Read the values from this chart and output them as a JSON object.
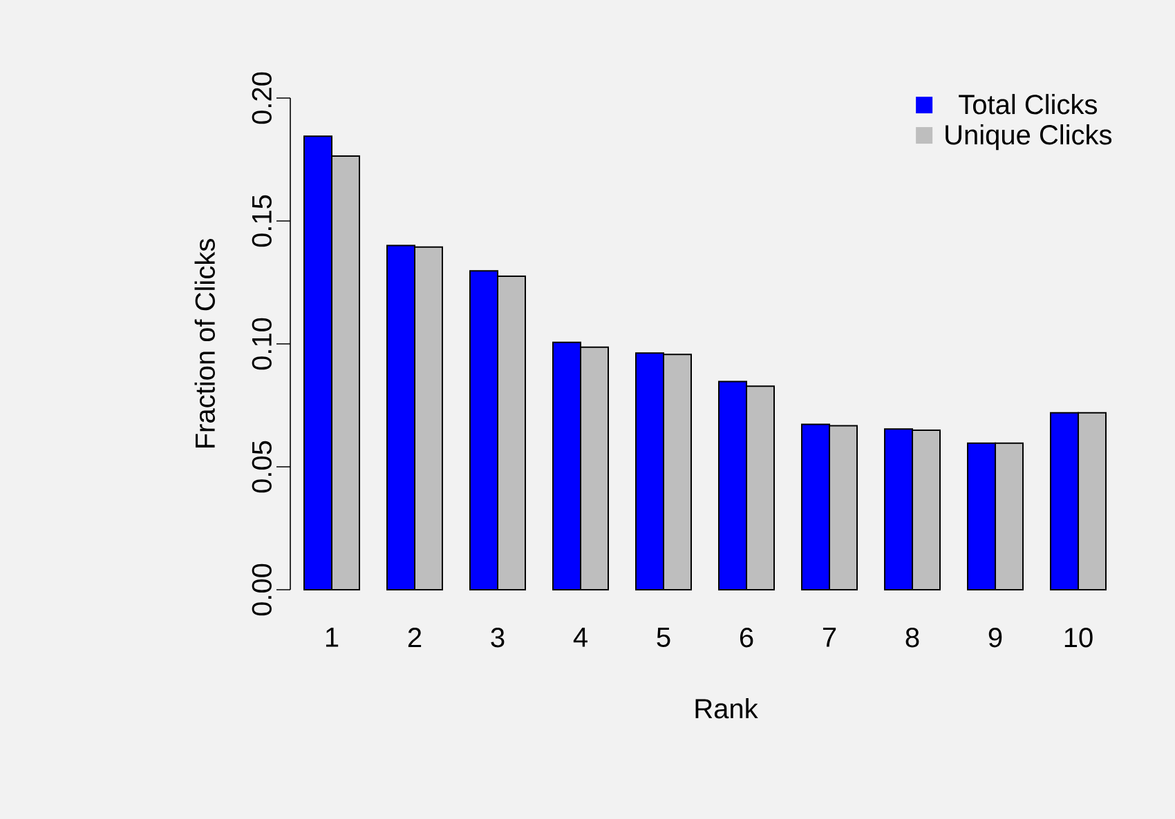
{
  "chart_data": {
    "type": "bar",
    "xlabel": "Rank",
    "ylabel": "Fraction of Clicks",
    "categories": [
      "1",
      "2",
      "3",
      "4",
      "5",
      "6",
      "7",
      "8",
      "9",
      "10"
    ],
    "series": [
      {
        "name": "Total Clicks",
        "color": "#0000ff",
        "values": [
          0.1845,
          0.14,
          0.1297,
          0.1006,
          0.0963,
          0.0847,
          0.0673,
          0.0654,
          0.0596,
          0.072
        ]
      },
      {
        "name": "Unique Clicks",
        "color": "#bebebe",
        "values": [
          0.1764,
          0.1394,
          0.1275,
          0.0987,
          0.0957,
          0.0828,
          0.0667,
          0.0649,
          0.0596,
          0.072
        ]
      }
    ],
    "ylim": [
      0,
      0.2
    ],
    "yticks": [
      {
        "value": 0,
        "label": "0.00"
      },
      {
        "value": 0.05,
        "label": "0.05"
      },
      {
        "value": 0.1,
        "label": "0.10"
      },
      {
        "value": 0.15,
        "label": "0.15"
      },
      {
        "value": 0.2,
        "label": "0.20"
      }
    ],
    "legend": "top right"
  }
}
